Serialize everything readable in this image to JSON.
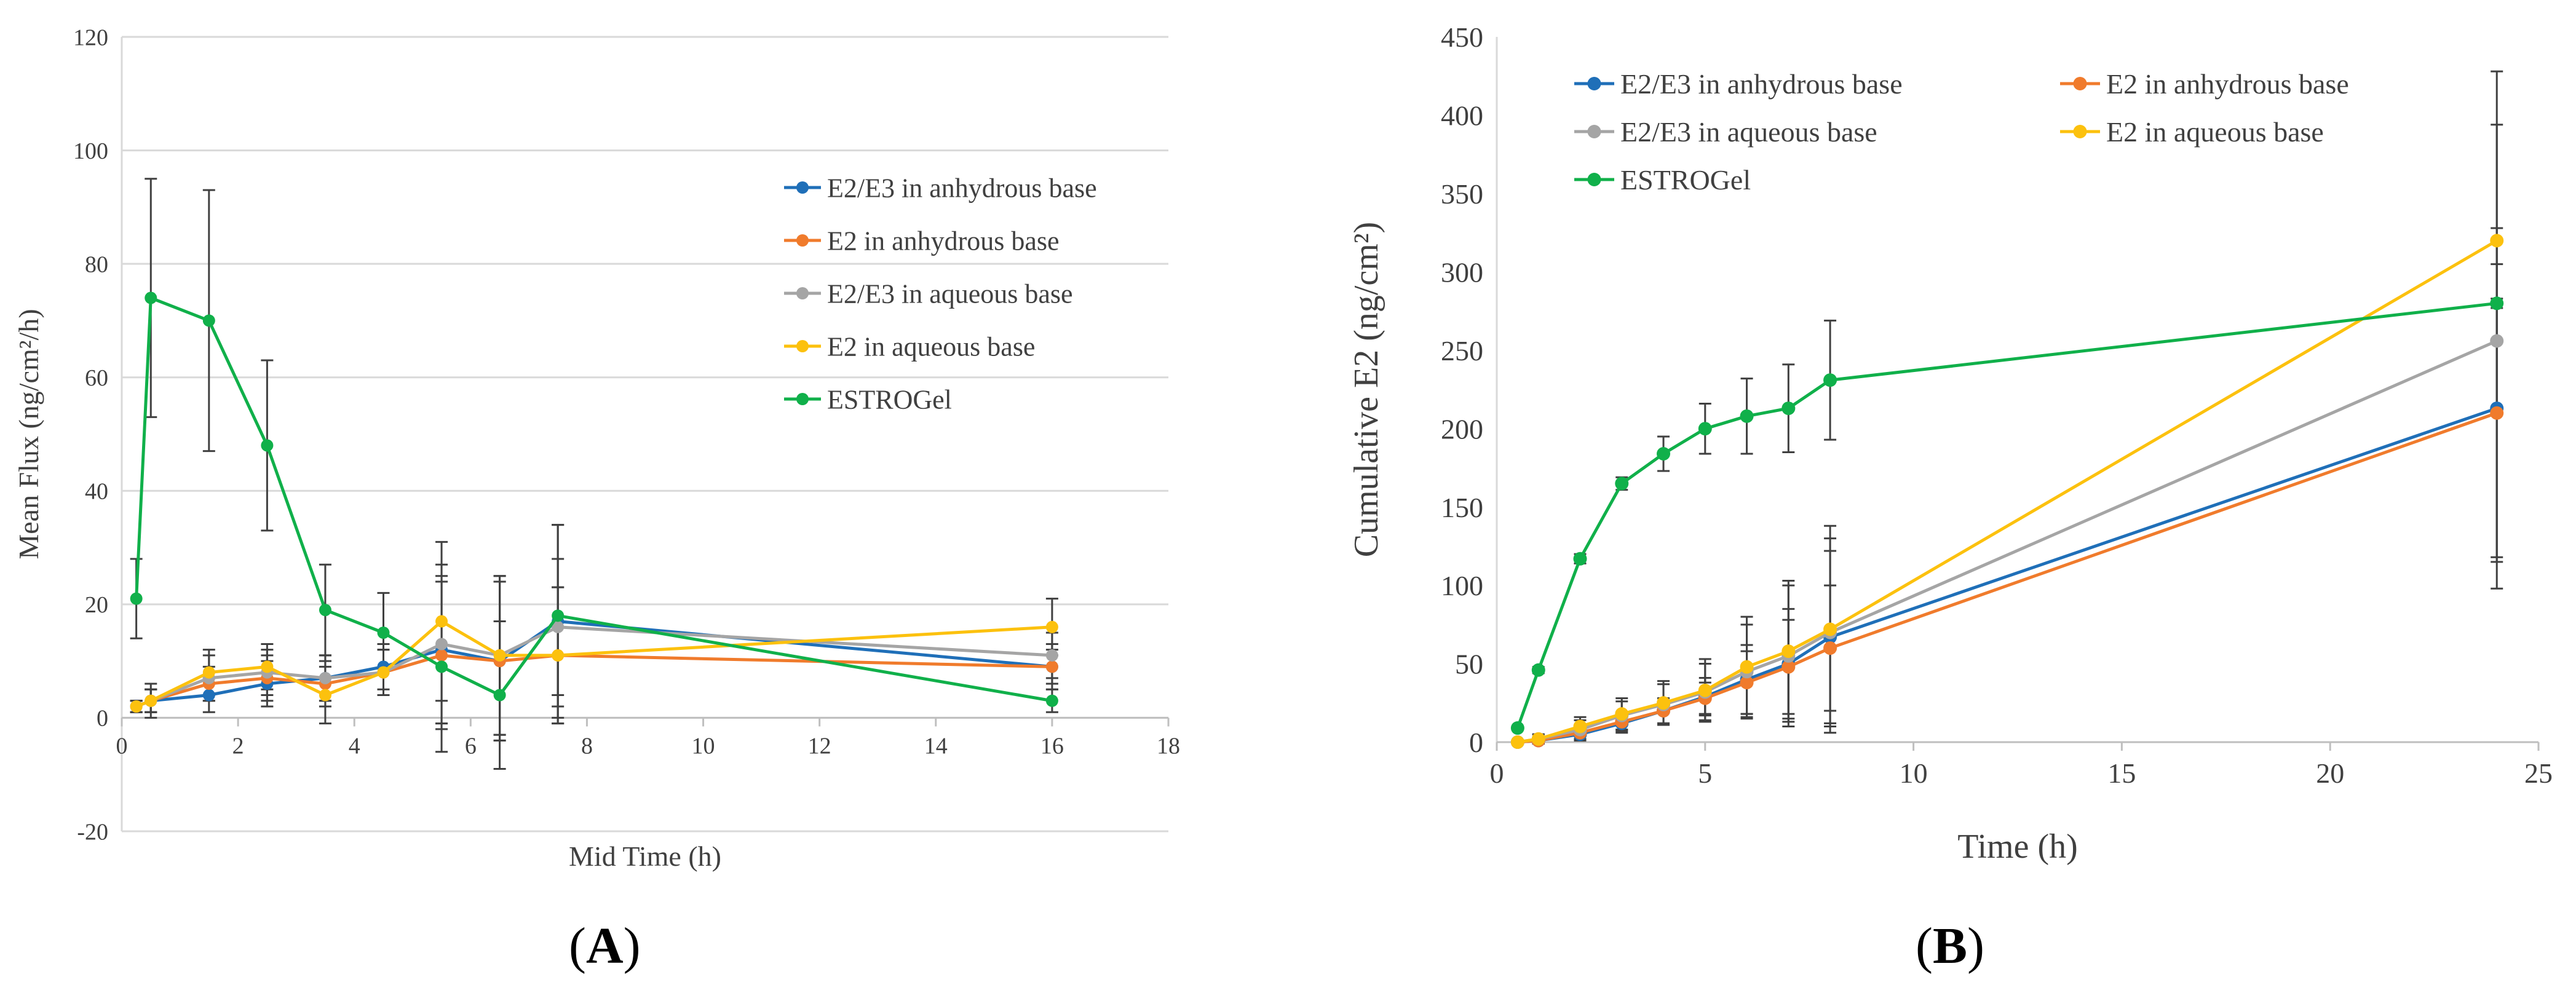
{
  "colors": {
    "blue": "#1f6fb8",
    "orange": "#f07b2c",
    "gray": "#a5a5a5",
    "yellow": "#fcc10e",
    "green": "#10b04a",
    "errorbar": "#404040",
    "grid": "#d9d9d9"
  },
  "chart_data": [
    {
      "id": "A",
      "type": "line",
      "xlabel": "Mid Time (h)",
      "ylabel": "Mean Flux (ng/cm²/h)",
      "xlim": [
        0,
        18
      ],
      "ylim": [
        -20,
        120
      ],
      "xticks": [
        0,
        2,
        4,
        6,
        8,
        10,
        12,
        14,
        16,
        18
      ],
      "yticks": [
        -20,
        0,
        20,
        40,
        60,
        80,
        100,
        120
      ],
      "legend_position": "right",
      "series": [
        {
          "name": "E2/E3 in anhydrous base",
          "color": "blue",
          "x": [
            0.25,
            0.5,
            1.5,
            2.5,
            3.5,
            4.5,
            5.5,
            6.5,
            7.5,
            16
          ],
          "y": [
            2,
            3,
            4,
            6,
            7,
            9,
            12,
            10,
            17,
            9
          ],
          "err": [
            1,
            2,
            3,
            4,
            4,
            4,
            13,
            14,
            17,
            4
          ]
        },
        {
          "name": "E2 in anhydrous base",
          "color": "orange",
          "x": [
            0.25,
            0.5,
            1.5,
            2.5,
            3.5,
            4.5,
            5.5,
            6.5,
            7.5,
            16
          ],
          "y": [
            2,
            3,
            6,
            7,
            6,
            8,
            11,
            10,
            11,
            9
          ],
          "err": [
            1,
            2,
            3,
            4,
            4,
            4,
            13,
            14,
            12,
            3
          ]
        },
        {
          "name": "E2/E3 in aqueous base",
          "color": "gray",
          "x": [
            0.25,
            0.5,
            1.5,
            2.5,
            3.5,
            4.5,
            5.5,
            6.5,
            7.5,
            16
          ],
          "y": [
            2,
            3,
            7,
            8,
            7,
            8,
            13,
            11,
            16,
            11
          ],
          "err": [
            1,
            2,
            4,
            4,
            4,
            4,
            14,
            14,
            12,
            4
          ]
        },
        {
          "name": "E2 in aqueous base",
          "color": "yellow",
          "x": [
            0.25,
            0.5,
            1.5,
            2.5,
            3.5,
            4.5,
            5.5,
            6.5,
            7.5,
            16
          ],
          "y": [
            2,
            3,
            8,
            9,
            4,
            8,
            17,
            11,
            11,
            16
          ],
          "err": [
            1,
            3,
            4,
            4,
            5,
            4,
            14,
            14,
            12,
            5
          ]
        },
        {
          "name": "ESTROGel",
          "color": "green",
          "x": [
            0.25,
            0.5,
            1.5,
            2.5,
            3.5,
            4.5,
            5.5,
            6.5,
            7.5,
            16
          ],
          "y": [
            21,
            74,
            70,
            48,
            19,
            15,
            9,
            4,
            18,
            3
          ],
          "err": [
            7,
            21,
            23,
            15,
            8,
            7,
            15,
            13,
            16,
            2
          ]
        }
      ]
    },
    {
      "id": "B",
      "type": "line",
      "xlabel": "Time (h)",
      "ylabel": "Cumulative E2 (ng/cm²)",
      "xlim": [
        0,
        25
      ],
      "ylim": [
        0,
        450
      ],
      "xticks": [
        0,
        5,
        10,
        15,
        20,
        25
      ],
      "yticks": [
        0,
        50,
        100,
        150,
        200,
        250,
        300,
        350,
        400,
        450
      ],
      "legend_position": "top-left",
      "series": [
        {
          "name": "E2/E3 in anhydrous base",
          "color": "blue",
          "x": [
            0.5,
            1,
            2,
            3,
            4,
            5,
            6,
            7,
            8,
            24
          ],
          "y": [
            0,
            1,
            5,
            12,
            20,
            29,
            40,
            50,
            67,
            213
          ],
          "err": [
            1,
            2,
            4,
            6,
            8,
            12,
            22,
            35,
            55,
            115
          ]
        },
        {
          "name": "E2 in anhydrous base",
          "color": "orange",
          "x": [
            0.5,
            1,
            2,
            3,
            4,
            5,
            6,
            7,
            8,
            24
          ],
          "y": [
            0,
            1,
            6,
            13,
            20,
            28,
            38,
            48,
            60,
            210
          ],
          "err": [
            1,
            2,
            4,
            6,
            8,
            10,
            20,
            30,
            40,
            95
          ]
        },
        {
          "name": "E2/E3 in aqueous base",
          "color": "gray",
          "x": [
            0.5,
            1,
            2,
            3,
            4,
            5,
            6,
            7,
            8,
            24
          ],
          "y": [
            0,
            2,
            8,
            17,
            24,
            32,
            45,
            55,
            70,
            256
          ],
          "err": [
            1,
            3,
            6,
            9,
            13,
            18,
            30,
            45,
            60,
            138
          ]
        },
        {
          "name": "E2 in aqueous base",
          "color": "yellow",
          "x": [
            0.5,
            1,
            2,
            3,
            4,
            5,
            6,
            7,
            8,
            24
          ],
          "y": [
            0,
            2,
            10,
            18,
            25,
            33,
            48,
            58,
            72,
            320
          ],
          "err": [
            1,
            3,
            6,
            10,
            14,
            20,
            32,
            45,
            66,
            108
          ]
        },
        {
          "name": "ESTROGel",
          "color": "green",
          "x": [
            0.5,
            1,
            2,
            3,
            4,
            5,
            6,
            7,
            8,
            24
          ],
          "y": [
            9,
            46,
            117,
            165,
            184,
            200,
            208,
            213,
            231,
            280
          ],
          "err": [
            1,
            2,
            3,
            4,
            11,
            16,
            24,
            28,
            38,
            3
          ]
        }
      ]
    }
  ],
  "panel_labels": {
    "a": "A",
    "b": "B"
  }
}
